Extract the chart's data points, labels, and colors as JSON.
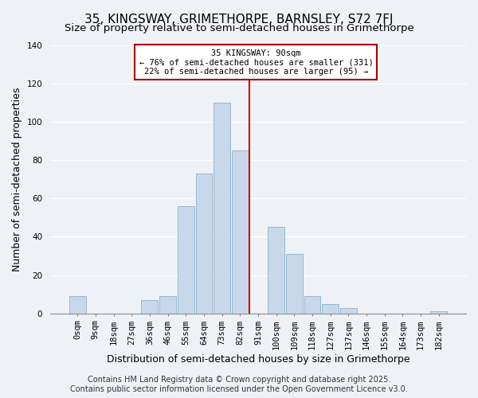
{
  "title": "35, KINGSWAY, GRIMETHORPE, BARNSLEY, S72 7FJ",
  "subtitle": "Size of property relative to semi-detached houses in Grimethorpe",
  "xlabel": "Distribution of semi-detached houses by size in Grimethorpe",
  "ylabel": "Number of semi-detached properties",
  "bin_labels": [
    "0sqm",
    "9sqm",
    "18sqm",
    "27sqm",
    "36sqm",
    "46sqm",
    "55sqm",
    "64sqm",
    "73sqm",
    "82sqm",
    "91sqm",
    "100sqm",
    "109sqm",
    "118sqm",
    "127sqm",
    "137sqm",
    "146sqm",
    "155sqm",
    "164sqm",
    "173sqm",
    "182sqm"
  ],
  "bar_heights": [
    9,
    0,
    0,
    0,
    7,
    9,
    56,
    73,
    110,
    85,
    0,
    45,
    31,
    9,
    5,
    3,
    0,
    0,
    0,
    0,
    1
  ],
  "bar_color": "#c8d8eb",
  "bar_edge_color": "#8ab0cc",
  "vertical_line_x": 10,
  "vertical_line_color": "#cc0000",
  "annotation_title": "35 KINGSWAY: 90sqm",
  "annotation_line1": "← 76% of semi-detached houses are smaller (331)",
  "annotation_line2": "22% of semi-detached houses are larger (95) →",
  "annotation_box_color": "#ffffff",
  "annotation_box_edge": "#aa0000",
  "footer1": "Contains HM Land Registry data © Crown copyright and database right 2025.",
  "footer2": "Contains public sector information licensed under the Open Government Licence v3.0.",
  "background_color": "#eef2f7",
  "ylim": [
    0,
    140
  ],
  "yticks": [
    0,
    20,
    40,
    60,
    80,
    100,
    120,
    140
  ],
  "title_fontsize": 11,
  "subtitle_fontsize": 9.5,
  "axis_label_fontsize": 9,
  "tick_fontsize": 7.5,
  "footer_fontsize": 7
}
